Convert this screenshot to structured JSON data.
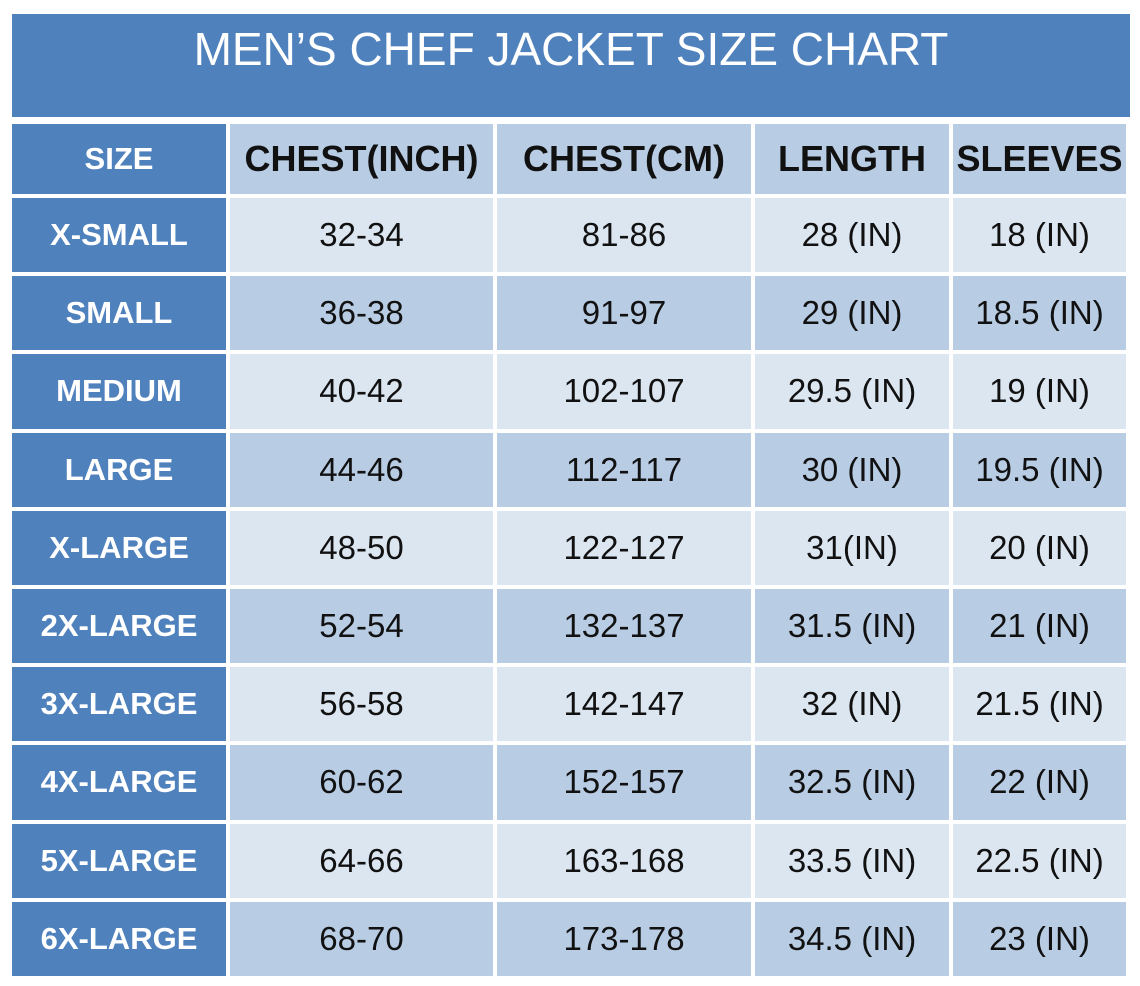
{
  "title": "MEN’S CHEF JACKET SIZE CHART",
  "headers": [
    "SIZE",
    "CHEST(INCH)",
    "CHEST(CM)",
    "LENGTH",
    "SLEEVES"
  ],
  "rows": [
    [
      "X-SMALL",
      "32-34",
      "81-86",
      "28 (IN)",
      "18 (IN)"
    ],
    [
      "SMALL",
      "36-38",
      "91-97",
      "29 (IN)",
      "18.5 (IN)"
    ],
    [
      "MEDIUM",
      "40-42",
      "102-107",
      "29.5 (IN)",
      "19 (IN)"
    ],
    [
      "LARGE",
      "44-46",
      "112-117",
      "30 (IN)",
      "19.5 (IN)"
    ],
    [
      "X-LARGE",
      "48-50",
      "122-127",
      "31(IN)",
      "20 (IN)"
    ],
    [
      "2X-LARGE",
      "52-54",
      "132-137",
      "31.5 (IN)",
      "21 (IN)"
    ],
    [
      "3X-LARGE",
      "56-58",
      "142-147",
      "32 (IN)",
      "21.5 (IN)"
    ],
    [
      "4X-LARGE",
      "60-62",
      "152-157",
      "32.5 (IN)",
      "22 (IN)"
    ],
    [
      "5X-LARGE",
      "64-66",
      "163-168",
      "33.5 (IN)",
      "22.5 (IN)"
    ],
    [
      "6X-LARGE",
      "68-70",
      "173-178",
      "34.5 (IN)",
      "23 (IN)"
    ]
  ],
  "colors": {
    "accent": "#4f81bd",
    "header_bg": "#b8cce4",
    "row_light": "#dce6f1",
    "row_dark": "#b8cce4"
  }
}
